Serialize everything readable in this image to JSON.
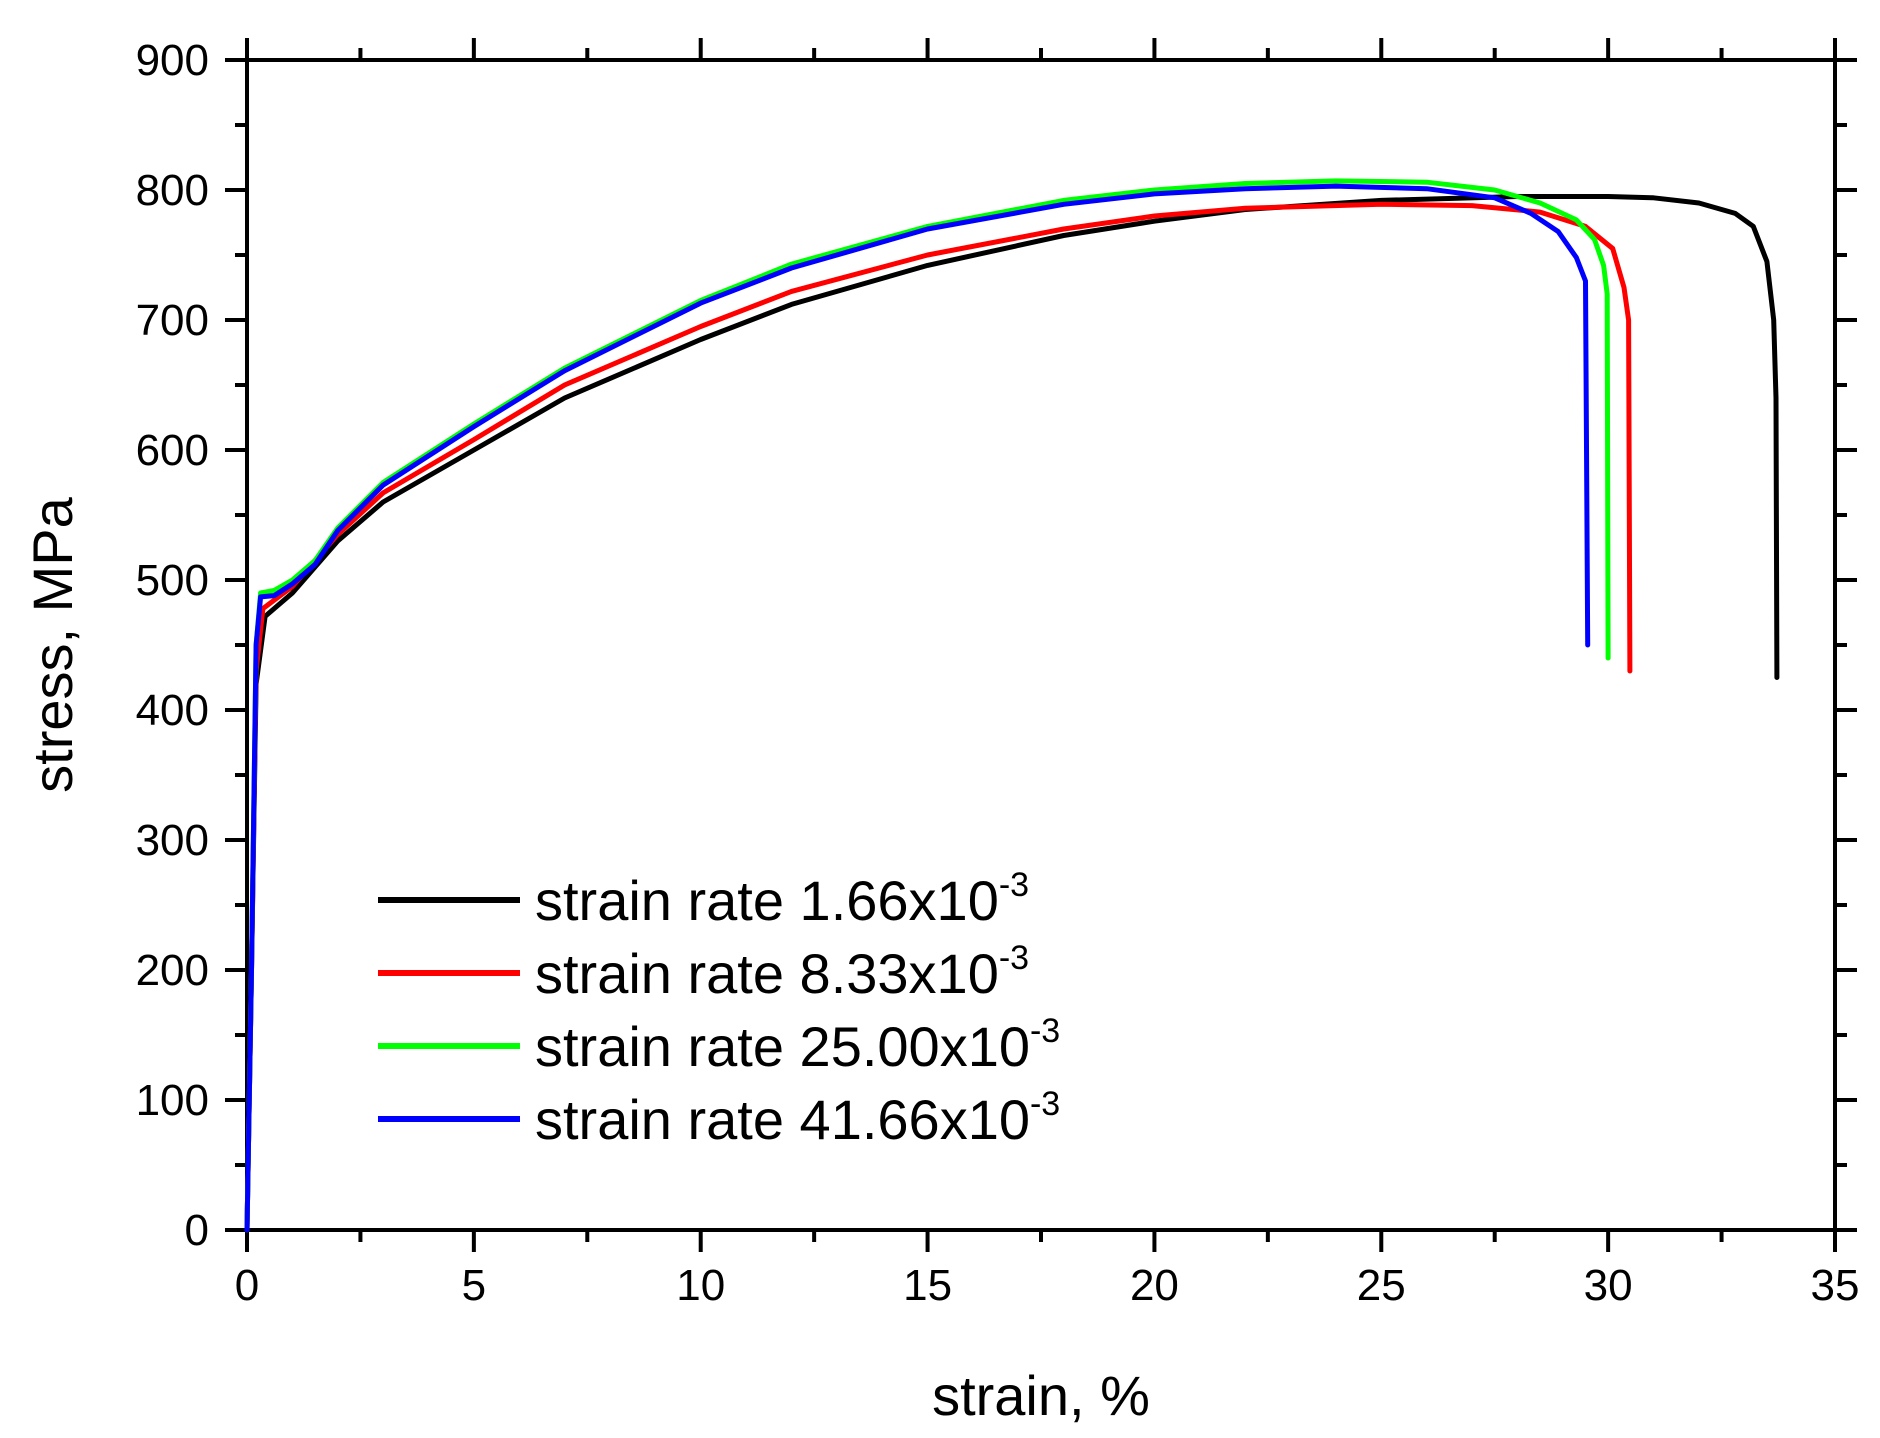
{
  "chart_data": {
    "type": "line",
    "title": "",
    "xlabel": "strain, %",
    "ylabel": "stress, MPa",
    "xlim": [
      0,
      35
    ],
    "ylim": [
      0,
      900
    ],
    "xticks": [
      "0",
      "5",
      "10",
      "15",
      "20",
      "25",
      "30",
      "35"
    ],
    "yticks": [
      "0",
      "100",
      "200",
      "300",
      "400",
      "500",
      "600",
      "700",
      "800",
      "900"
    ],
    "grid": false,
    "legend_position": "bottom-left",
    "series": [
      {
        "name": "strain rate 1.66x10",
        "exponent": "-3",
        "color": "#000000",
        "points": [
          [
            0,
            0
          ],
          [
            0.1,
            200
          ],
          [
            0.2,
            420
          ],
          [
            0.4,
            472
          ],
          [
            1,
            490
          ],
          [
            2,
            530
          ],
          [
            3,
            560
          ],
          [
            5,
            600
          ],
          [
            7,
            640
          ],
          [
            10,
            685
          ],
          [
            12,
            712
          ],
          [
            15,
            742
          ],
          [
            18,
            765
          ],
          [
            20,
            776
          ],
          [
            22,
            785
          ],
          [
            25,
            792
          ],
          [
            28,
            795
          ],
          [
            30,
            795
          ],
          [
            31,
            794
          ],
          [
            32,
            790
          ],
          [
            32.8,
            782
          ],
          [
            33.2,
            772
          ],
          [
            33.5,
            745
          ],
          [
            33.65,
            700
          ],
          [
            33.7,
            640
          ],
          [
            33.72,
            425
          ]
        ]
      },
      {
        "name": "strain rate 8.33x10",
        "exponent": "-3",
        "color": "#ff0000",
        "points": [
          [
            0,
            0
          ],
          [
            0.1,
            200
          ],
          [
            0.2,
            430
          ],
          [
            0.35,
            478
          ],
          [
            1,
            495
          ],
          [
            2,
            535
          ],
          [
            3,
            567
          ],
          [
            5,
            608
          ],
          [
            7,
            650
          ],
          [
            10,
            695
          ],
          [
            12,
            722
          ],
          [
            15,
            750
          ],
          [
            18,
            770
          ],
          [
            20,
            780
          ],
          [
            22,
            786
          ],
          [
            25,
            789
          ],
          [
            27,
            788
          ],
          [
            28.5,
            783
          ],
          [
            29.5,
            772
          ],
          [
            30.1,
            755
          ],
          [
            30.35,
            725
          ],
          [
            30.45,
            700
          ],
          [
            30.48,
            430
          ]
        ]
      },
      {
        "name": "strain rate 25.00x10",
        "exponent": "-3",
        "color": "#00ff00",
        "points": [
          [
            0,
            0
          ],
          [
            0.1,
            200
          ],
          [
            0.2,
            450
          ],
          [
            0.3,
            490
          ],
          [
            0.6,
            492
          ],
          [
            1,
            500
          ],
          [
            1.5,
            515
          ],
          [
            2,
            540
          ],
          [
            3,
            575
          ],
          [
            5,
            620
          ],
          [
            7,
            663
          ],
          [
            10,
            715
          ],
          [
            12,
            743
          ],
          [
            15,
            772
          ],
          [
            18,
            792
          ],
          [
            20,
            800
          ],
          [
            22,
            805
          ],
          [
            24,
            807
          ],
          [
            26,
            806
          ],
          [
            27.5,
            800
          ],
          [
            28.5,
            790
          ],
          [
            29.3,
            777
          ],
          [
            29.7,
            762
          ],
          [
            29.9,
            742
          ],
          [
            29.98,
            720
          ],
          [
            30.0,
            440
          ]
        ]
      },
      {
        "name": "strain rate 41.66x10",
        "exponent": "-3",
        "color": "#0000ff",
        "points": [
          [
            0,
            0
          ],
          [
            0.1,
            200
          ],
          [
            0.2,
            450
          ],
          [
            0.3,
            487
          ],
          [
            0.6,
            488
          ],
          [
            1,
            497
          ],
          [
            1.5,
            512
          ],
          [
            2,
            538
          ],
          [
            3,
            573
          ],
          [
            5,
            618
          ],
          [
            7,
            661
          ],
          [
            10,
            713
          ],
          [
            12,
            740
          ],
          [
            15,
            770
          ],
          [
            18,
            789
          ],
          [
            20,
            797
          ],
          [
            22,
            801
          ],
          [
            24,
            803
          ],
          [
            26,
            801
          ],
          [
            27.5,
            794
          ],
          [
            28.3,
            782
          ],
          [
            28.9,
            768
          ],
          [
            29.3,
            748
          ],
          [
            29.5,
            730
          ],
          [
            29.55,
            450
          ]
        ]
      }
    ]
  }
}
